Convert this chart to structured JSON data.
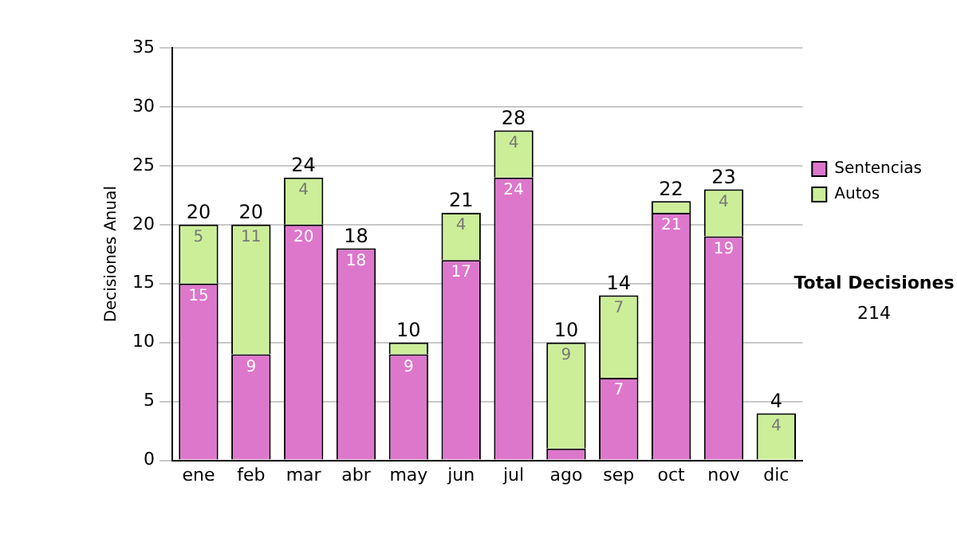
{
  "chart_data": {
    "type": "bar",
    "stacked": true,
    "ylabel": "Decisiones Anual",
    "categories": [
      "ene",
      "feb",
      "mar",
      "abr",
      "may",
      "jun",
      "jul",
      "ago",
      "sep",
      "oct",
      "nov",
      "dic"
    ],
    "series": [
      {
        "name": "Sentencias",
        "color": "#dd77cc",
        "values": [
          15,
          9,
          20,
          18,
          9,
          17,
          24,
          1,
          7,
          21,
          19,
          0
        ],
        "value_labels": [
          "15",
          "9",
          "20",
          "18",
          "9",
          "17",
          "24",
          null,
          "7",
          "21",
          "19",
          null
        ]
      },
      {
        "name": "Autos",
        "color": "#ccee99",
        "values": [
          5,
          11,
          4,
          0,
          1,
          4,
          4,
          9,
          7,
          1,
          4,
          4
        ],
        "value_labels": [
          "5",
          "11",
          "4",
          null,
          null,
          "4",
          "4",
          "9",
          "7",
          null,
          "4",
          "4"
        ]
      }
    ],
    "totals": [
      "20",
      "20",
      "24",
      "18",
      "10",
      "21",
      "28",
      "10",
      "14",
      "22",
      "23",
      "4"
    ],
    "ylim": [
      0,
      35
    ],
    "yticks": [
      0,
      5,
      10,
      15,
      20,
      25,
      30,
      35
    ],
    "grid": "y",
    "legend": "right",
    "annotations": [
      "Total Decisiones",
      "214"
    ]
  }
}
